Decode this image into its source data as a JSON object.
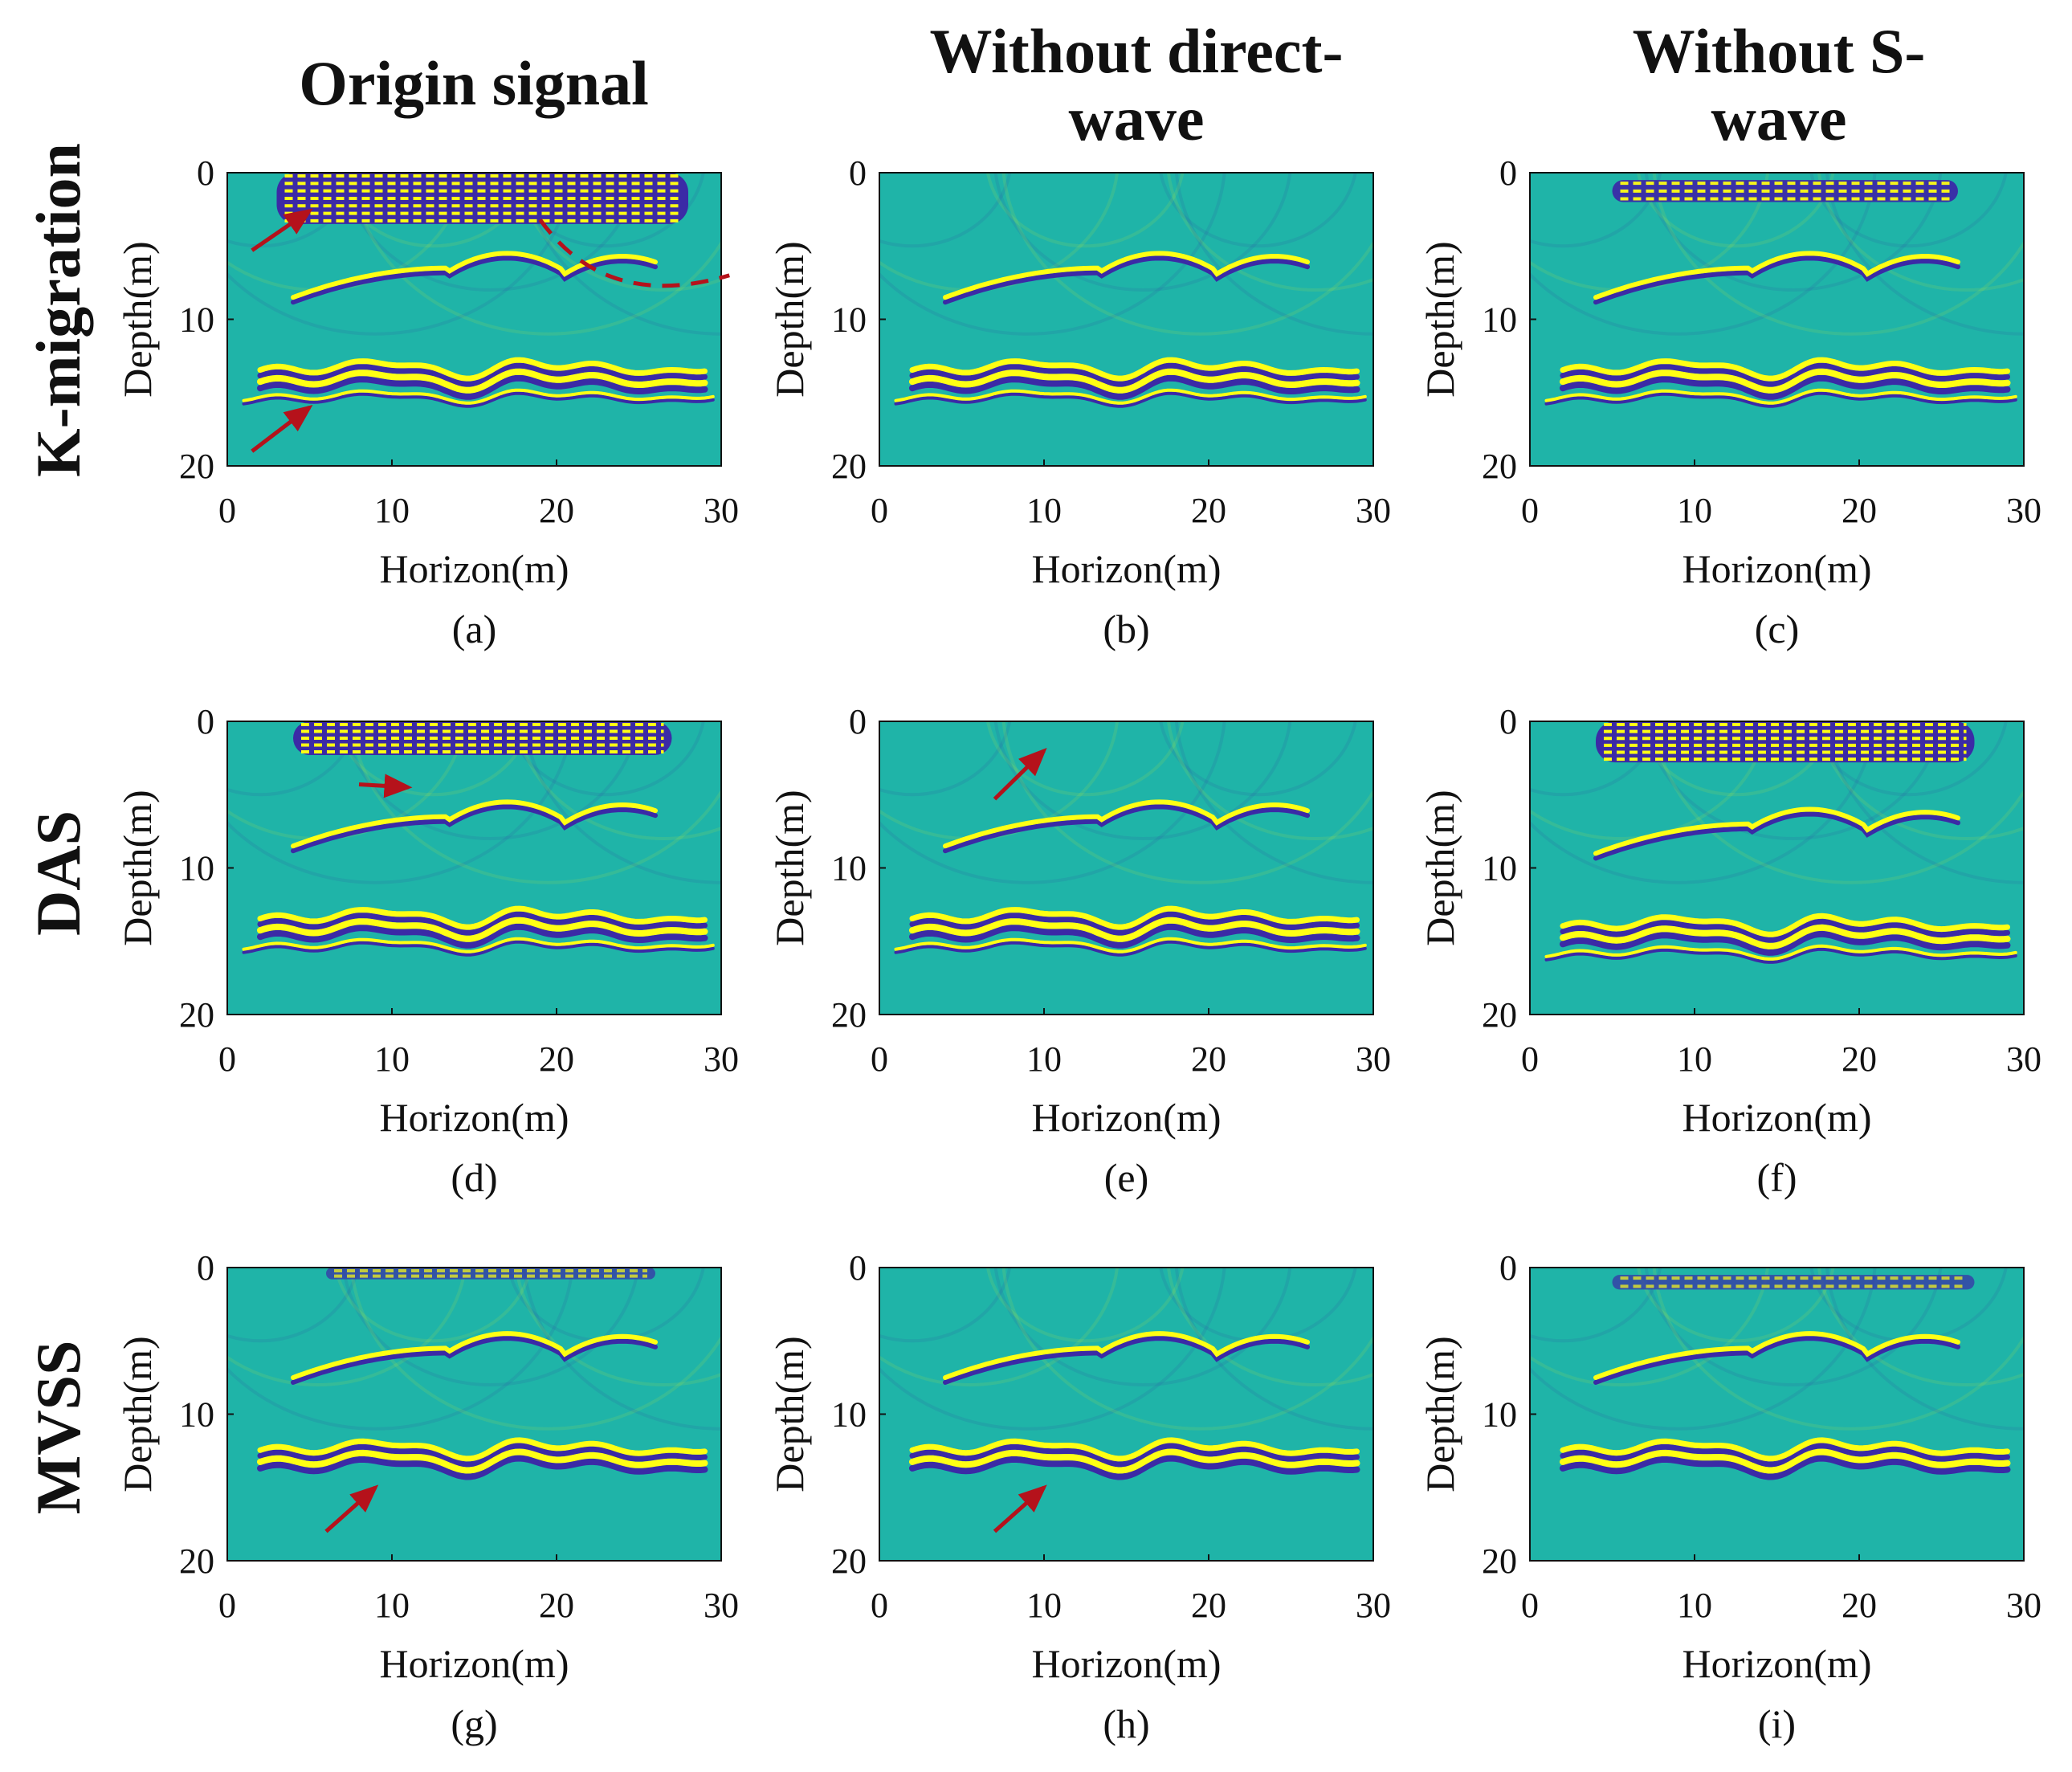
{
  "columns": [
    {
      "label": "Origin signal"
    },
    {
      "label_line1": "Without direct-",
      "label_line2": "wave"
    },
    {
      "label_line1": "Without S-",
      "label_line2": "wave"
    }
  ],
  "rows": [
    {
      "label": "K-migration"
    },
    {
      "label": "DAS"
    },
    {
      "label": "MVSS"
    }
  ],
  "colors": {
    "background": "#1fb4a8",
    "positive": "#ffff14",
    "negative": "#3b2aa6",
    "annotation": "#b5121b"
  },
  "chart_data": [
    {
      "id": "a",
      "type": "heatmap",
      "row": "K-migration",
      "column": "Origin signal",
      "caption": "(a)",
      "xlabel": "Horizon(m)",
      "ylabel": "Depth(m)",
      "xlim": [
        0,
        30
      ],
      "ylim": [
        20,
        0
      ],
      "xticks": [
        "0",
        "10",
        "20",
        "30"
      ],
      "yticks": [
        "0",
        "10",
        "20"
      ],
      "direct_wave": {
        "x": [
          3,
          28
        ],
        "depth": [
          0,
          3.5
        ],
        "strength": "strong"
      },
      "reflector_upper_depth": 6.5,
      "reflector_lower_depth": 14,
      "annotations": [
        "arrow at (5,3)",
        "arrow at (5,16)",
        "dashed curve from (19,3) to (30,7)"
      ]
    },
    {
      "id": "b",
      "type": "heatmap",
      "row": "K-migration",
      "column": "Without direct-wave",
      "caption": "(b)",
      "xlabel": "Horizon(m)",
      "ylabel": "Depth(m)",
      "xlim": [
        0,
        30
      ],
      "ylim": [
        20,
        0
      ],
      "xticks": [
        "0",
        "10",
        "20",
        "30"
      ],
      "yticks": [
        "0",
        "10",
        "20"
      ],
      "direct_wave": null,
      "reflector_upper_depth": 6.5,
      "reflector_lower_depth": 14,
      "annotations": []
    },
    {
      "id": "c",
      "type": "heatmap",
      "row": "K-migration",
      "column": "Without S-wave",
      "caption": "(c)",
      "xlabel": "Horizon(m)",
      "ylabel": "Depth(m)",
      "xlim": [
        0,
        30
      ],
      "ylim": [
        20,
        0
      ],
      "xticks": [
        "0",
        "10",
        "20",
        "30"
      ],
      "yticks": [
        "0",
        "10",
        "20"
      ],
      "direct_wave": {
        "x": [
          5,
          26
        ],
        "depth": [
          0.5,
          2
        ],
        "strength": "medium"
      },
      "reflector_upper_depth": 6.5,
      "reflector_lower_depth": 14,
      "annotations": []
    },
    {
      "id": "d",
      "type": "heatmap",
      "row": "DAS",
      "column": "Origin signal",
      "caption": "(d)",
      "xlabel": "Horizon(m)",
      "ylabel": "Depth(m)",
      "xlim": [
        0,
        30
      ],
      "ylim": [
        20,
        0
      ],
      "xticks": [
        "0",
        "10",
        "20",
        "30"
      ],
      "yticks": [
        "0",
        "10",
        "20"
      ],
      "direct_wave": {
        "x": [
          4,
          27
        ],
        "depth": [
          0,
          2.3
        ],
        "strength": "strong"
      },
      "reflector_upper_depth": 6.5,
      "reflector_lower_depth": 14,
      "annotations": [
        "arrow at (11,4.5)"
      ]
    },
    {
      "id": "e",
      "type": "heatmap",
      "row": "DAS",
      "column": "Without direct-wave",
      "caption": "(e)",
      "xlabel": "Horizon(m)",
      "ylabel": "Depth(m)",
      "xlim": [
        0,
        30
      ],
      "ylim": [
        20,
        0
      ],
      "xticks": [
        "0",
        "10",
        "20",
        "30"
      ],
      "yticks": [
        "0",
        "10",
        "20"
      ],
      "direct_wave": null,
      "reflector_upper_depth": 6.5,
      "reflector_lower_depth": 14,
      "annotations": [
        "arrow at (10,2)"
      ]
    },
    {
      "id": "f",
      "type": "heatmap",
      "row": "DAS",
      "column": "Without S-wave",
      "caption": "(f)",
      "xlabel": "Horizon(m)",
      "ylabel": "Depth(m)",
      "xlim": [
        0,
        30
      ],
      "ylim": [
        20,
        0
      ],
      "xticks": [
        "0",
        "10",
        "20",
        "30"
      ],
      "yticks": [
        "0",
        "10",
        "20"
      ],
      "direct_wave": {
        "x": [
          4,
          27
        ],
        "depth": [
          0,
          2.8
        ],
        "strength": "strong"
      },
      "reflector_upper_depth": 7,
      "reflector_lower_depth": 14.5,
      "annotations": []
    },
    {
      "id": "g",
      "type": "heatmap",
      "row": "MVSS",
      "column": "Origin signal",
      "caption": "(g)",
      "xlabel": "Horizon(m)",
      "ylabel": "Depth(m)",
      "xlim": [
        0,
        30
      ],
      "ylim": [
        20,
        0
      ],
      "xticks": [
        "0",
        "10",
        "20",
        "30"
      ],
      "yticks": [
        "0",
        "10",
        "20"
      ],
      "direct_wave": {
        "x": [
          6,
          26
        ],
        "depth": [
          0,
          0.8
        ],
        "strength": "weak"
      },
      "reflector_upper_depth": 5.5,
      "reflector_lower_depth": 13,
      "annotations": [
        "arrow at (9,15)"
      ]
    },
    {
      "id": "h",
      "type": "heatmap",
      "row": "MVSS",
      "column": "Without direct-wave",
      "caption": "(h)",
      "xlabel": "Horizon(m)",
      "ylabel": "Depth(m)",
      "xlim": [
        0,
        30
      ],
      "ylim": [
        20,
        0
      ],
      "xticks": [
        "0",
        "10",
        "20",
        "30"
      ],
      "yticks": [
        "0",
        "10",
        "20"
      ],
      "direct_wave": null,
      "reflector_upper_depth": 5.5,
      "reflector_lower_depth": 13,
      "annotations": [
        "arrow at (10,15)"
      ]
    },
    {
      "id": "i",
      "type": "heatmap",
      "row": "MVSS",
      "column": "Without S-wave",
      "caption": "(i)",
      "xlabel": "Horizon(m)",
      "ylabel": "Depth(m)",
      "xlim": [
        0,
        30
      ],
      "ylim": [
        20,
        0
      ],
      "xticks": [
        "0",
        "10",
        "20",
        "30"
      ],
      "yticks": [
        "0",
        "10",
        "20"
      ],
      "direct_wave": {
        "x": [
          5,
          27
        ],
        "depth": [
          0.5,
          1.5
        ],
        "strength": "weak"
      },
      "reflector_upper_depth": 5.5,
      "reflector_lower_depth": 13,
      "annotations": []
    }
  ]
}
